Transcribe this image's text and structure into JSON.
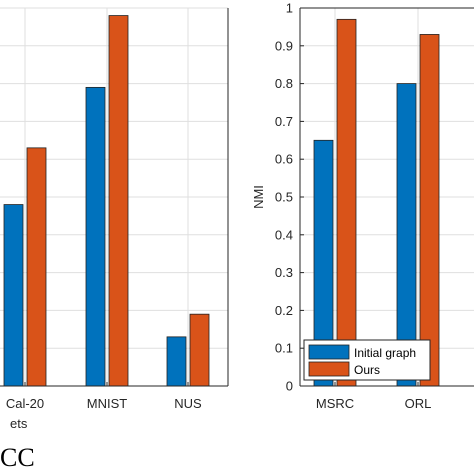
{
  "colors": {
    "initial": "#0072BD",
    "ours": "#D95319",
    "grid": "#DFDFDF",
    "axis": "#262626"
  },
  "figure": {
    "caption_fragment": "CC"
  },
  "chart_data": [
    {
      "type": "bar",
      "categories": [
        "Cal-20",
        "MNIST",
        "NUS"
      ],
      "xlabel_fragment": "ets",
      "ylim": [
        0,
        1
      ],
      "grid": true,
      "series": [
        {
          "name": "Initial graph",
          "values": [
            0.48,
            0.79,
            0.13
          ]
        },
        {
          "name": "Ours",
          "values": [
            0.63,
            0.98,
            0.19
          ]
        }
      ]
    },
    {
      "type": "bar",
      "categories": [
        "MSRC",
        "ORL"
      ],
      "ylabel": "NMI",
      "ylim": [
        0,
        1
      ],
      "yticks": [
        "0",
        "0.1",
        "0.2",
        "0.3",
        "0.4",
        "0.5",
        "0.6",
        "0.7",
        "0.8",
        "0.9",
        "1"
      ],
      "grid": true,
      "legend_position": "bottom-left",
      "series": [
        {
          "name": "Initial graph",
          "values": [
            0.65,
            0.8
          ]
        },
        {
          "name": "Ours",
          "values": [
            0.97,
            0.93
          ]
        }
      ]
    }
  ]
}
